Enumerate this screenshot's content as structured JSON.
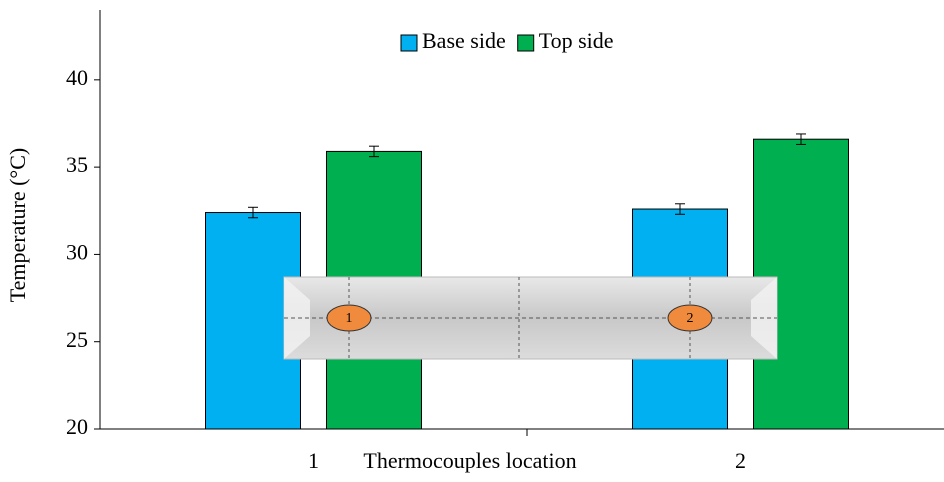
{
  "chart_data": {
    "type": "bar",
    "x_label": "Thermocouples location",
    "y_label": "Temperature (°C)",
    "categories": [
      "1",
      "2"
    ],
    "series": [
      {
        "name": "Base side",
        "color": "#00b0f0",
        "values": [
          32.4,
          32.6
        ],
        "errors": [
          0.3,
          0.3
        ]
      },
      {
        "name": "Top side",
        "color": "#00b050",
        "values": [
          35.9,
          36.6
        ],
        "errors": [
          0.3,
          0.3
        ]
      }
    ],
    "ylim": [
      20,
      44
    ],
    "yticks": [
      20,
      25,
      30,
      35,
      40
    ],
    "legend": "top",
    "inset_labels": [
      "1",
      "2"
    ]
  }
}
